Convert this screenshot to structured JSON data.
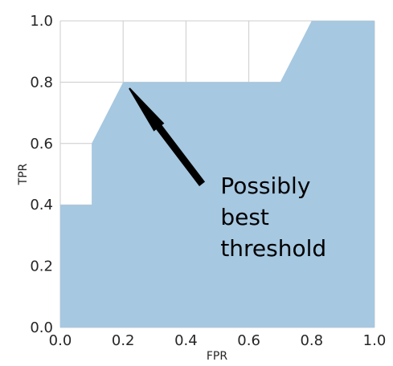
{
  "chart_data": {
    "type": "area",
    "title": "",
    "xlabel": "FPR",
    "ylabel": "TPR",
    "xlim": [
      0,
      1
    ],
    "ylim": [
      0,
      1
    ],
    "grid": true,
    "x_ticks": [
      "0.0",
      "0.2",
      "0.4",
      "0.6",
      "0.8",
      "1.0"
    ],
    "y_ticks": [
      "0.0",
      "0.2",
      "0.4",
      "0.6",
      "0.8",
      "1.0"
    ],
    "series": [
      {
        "x": [
          0.0,
          0.0,
          0.1,
          0.1,
          0.2,
          0.7,
          0.8,
          1.0,
          1.0
        ],
        "y": [
          0.0,
          0.4,
          0.4,
          0.6,
          0.8,
          0.8,
          1.0,
          1.0,
          0.0
        ],
        "color": "#a6c8e1"
      }
    ],
    "annotation": {
      "text_lines": [
        "Possibly",
        "best",
        "threshold"
      ],
      "arrow_tip": [
        0.22,
        0.78
      ],
      "arrow_tail": [
        0.45,
        0.47
      ],
      "text_anchor": [
        0.52,
        0.46
      ]
    }
  }
}
